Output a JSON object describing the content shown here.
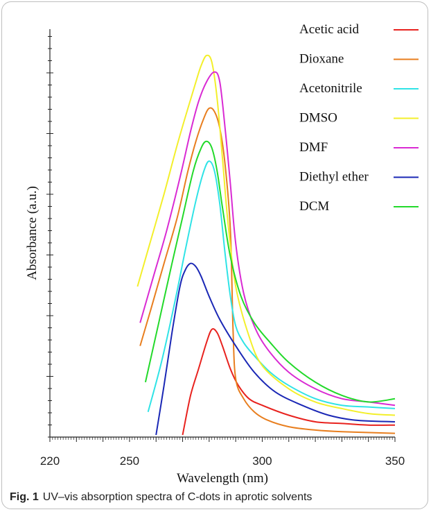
{
  "chart_data": {
    "type": "line",
    "xlabel": "Wavelength (nm)",
    "ylabel": "Absorbance (a.u.)",
    "xlim": [
      220,
      350
    ],
    "ylim": [
      0,
      1.15
    ],
    "x_ticks": [
      220,
      250,
      300,
      350
    ],
    "legend_position": "top-right",
    "grid": false,
    "series": [
      {
        "name": "Acetic acid",
        "color": "#e8221e",
        "x": [
          270,
          273,
          276,
          279,
          281,
          283,
          285,
          288,
          291,
          295,
          300,
          310,
          320,
          330,
          340,
          350
        ],
        "y": [
          0.0,
          0.12,
          0.2,
          0.28,
          0.32,
          0.31,
          0.27,
          0.2,
          0.15,
          0.11,
          0.09,
          0.06,
          0.04,
          0.035,
          0.03,
          0.03
        ]
      },
      {
        "name": "Dioxane",
        "color": "#e87e1e",
        "x": [
          254,
          258,
          263,
          268,
          272,
          275,
          278,
          280,
          282,
          284,
          286,
          288,
          289,
          290,
          293,
          297,
          302,
          310,
          320,
          330,
          350
        ],
        "y": [
          0.27,
          0.38,
          0.52,
          0.66,
          0.8,
          0.89,
          0.96,
          0.99,
          0.98,
          0.93,
          0.82,
          0.62,
          0.32,
          0.17,
          0.11,
          0.07,
          0.045,
          0.025,
          0.015,
          0.01,
          0.005
        ]
      },
      {
        "name": "Acetonitrile",
        "color": "#2fe3e6",
        "x": [
          257,
          262,
          267,
          271,
          275,
          278,
          280,
          282,
          284,
          286,
          288,
          290,
          293,
          297,
          303,
          310,
          320,
          330,
          340,
          350
        ],
        "y": [
          0.07,
          0.22,
          0.4,
          0.56,
          0.71,
          0.8,
          0.83,
          0.8,
          0.7,
          0.55,
          0.42,
          0.33,
          0.28,
          0.24,
          0.19,
          0.15,
          0.11,
          0.09,
          0.085,
          0.08
        ]
      },
      {
        "name": "DMSO",
        "color": "#f3ef2a",
        "x": [
          253,
          258,
          263,
          268,
          272,
          275,
          277,
          279,
          281,
          283,
          285,
          287,
          290,
          295,
          300,
          310,
          320,
          330,
          340,
          350
        ],
        "y": [
          0.45,
          0.59,
          0.73,
          0.88,
          0.99,
          1.07,
          1.12,
          1.15,
          1.13,
          1.02,
          0.84,
          0.65,
          0.45,
          0.3,
          0.21,
          0.14,
          0.1,
          0.08,
          0.065,
          0.06
        ]
      },
      {
        "name": "DMF",
        "color": "#d92ad3",
        "x": [
          254,
          259,
          264,
          269,
          273,
          276,
          279,
          282,
          284,
          286,
          288,
          290,
          293,
          297,
          302,
          310,
          320,
          330,
          340,
          350
        ],
        "y": [
          0.34,
          0.48,
          0.62,
          0.78,
          0.92,
          1.01,
          1.07,
          1.1,
          1.07,
          0.93,
          0.76,
          0.58,
          0.43,
          0.33,
          0.26,
          0.19,
          0.14,
          0.11,
          0.1,
          0.09
        ]
      },
      {
        "name": "Diethyl ether",
        "color": "#1a27b5",
        "x": [
          260,
          263,
          266,
          269,
          271,
          273,
          275,
          277,
          280,
          284,
          290,
          297,
          305,
          315,
          325,
          335,
          350
        ],
        "y": [
          0.0,
          0.15,
          0.31,
          0.45,
          0.5,
          0.52,
          0.51,
          0.48,
          0.42,
          0.35,
          0.27,
          0.19,
          0.13,
          0.09,
          0.06,
          0.045,
          0.04
        ]
      },
      {
        "name": "DCM",
        "color": "#22d92a",
        "x": [
          256,
          261,
          266,
          270,
          274,
          277,
          279,
          281,
          283,
          285,
          288,
          292,
          297,
          303,
          310,
          320,
          330,
          340,
          350
        ],
        "y": [
          0.16,
          0.34,
          0.52,
          0.66,
          0.8,
          0.87,
          0.89,
          0.87,
          0.8,
          0.69,
          0.54,
          0.42,
          0.34,
          0.28,
          0.22,
          0.16,
          0.12,
          0.1,
          0.11
        ]
      }
    ]
  },
  "caption": {
    "label": "Fig. 1",
    "text": "UV–vis absorption spectra of C-dots in aprotic solvents"
  }
}
